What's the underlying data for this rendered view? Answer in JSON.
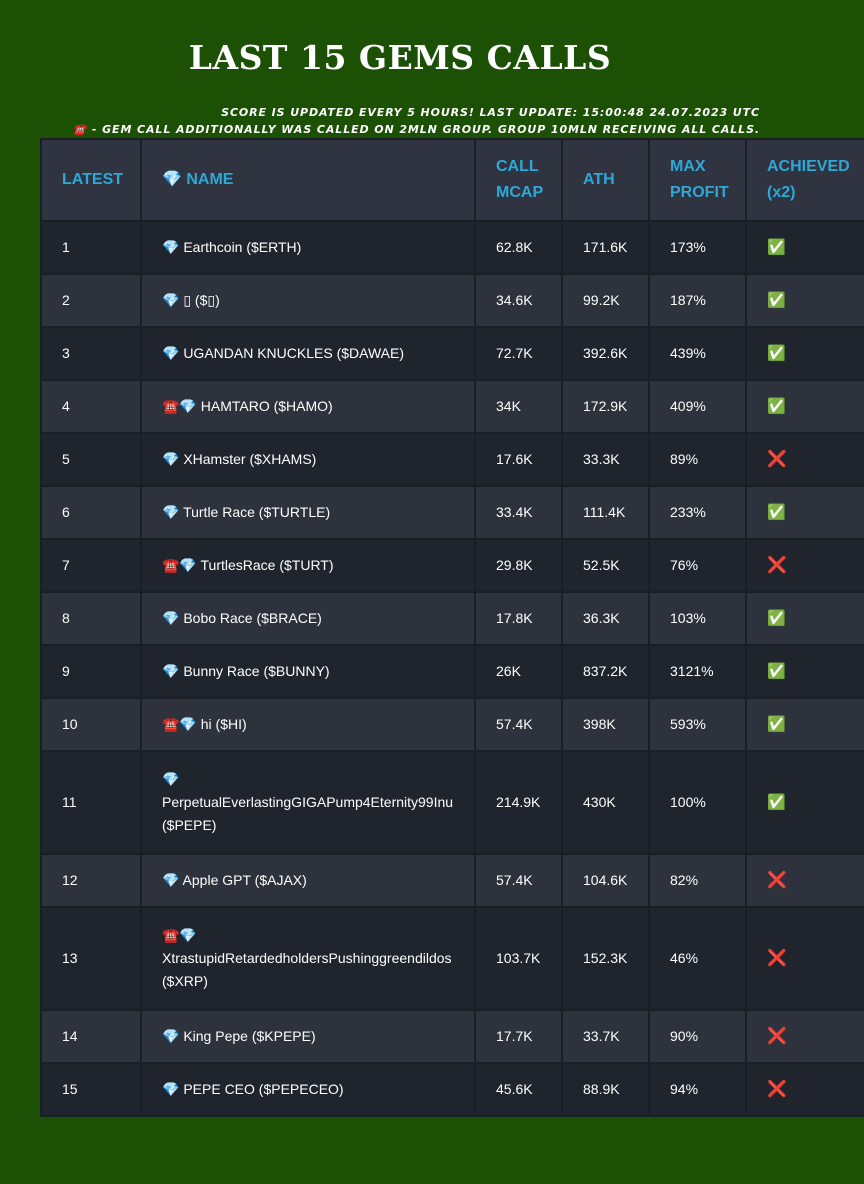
{
  "page": {
    "title": "LAST 15 GEMS CALLS",
    "update_note": "SCORE IS UPDATED EVERY 5 HOURS! LAST UPDATE: 15:00:48 24.07.2023 UTC",
    "group_note": "☎️ - GEM CALL ADDITIONALLY WAS CALLED ON 2MLN GROUP. GROUP 10MLN RECEIVING ALL CALLS."
  },
  "table": {
    "headers": {
      "latest": "LATEST",
      "name": "💎 NAME",
      "call_mcap_line1": "CALL",
      "call_mcap_line2": "MCAP",
      "ath": "ATH",
      "max_profit_line1": "MAX",
      "max_profit_line2": "PROFIT",
      "achieved_line1": "ACHIEVED",
      "achieved_line2": "(x2)"
    },
    "rows": [
      {
        "latest": "1",
        "name": "💎 Earthcoin ($ERTH)",
        "call_mcap": "62.8K",
        "ath": "171.6K",
        "max_profit": "173%",
        "achieved": "✅"
      },
      {
        "latest": "2",
        "name": "💎 ▯ ($▯)",
        "call_mcap": "34.6K",
        "ath": "99.2K",
        "max_profit": "187%",
        "achieved": "✅"
      },
      {
        "latest": "3",
        "name": "💎 UGANDAN KNUCKLES ($DAWAE)",
        "call_mcap": "72.7K",
        "ath": "392.6K",
        "max_profit": "439%",
        "achieved": "✅"
      },
      {
        "latest": "4",
        "name": "☎️💎 HAMTARO ($HAMO)",
        "call_mcap": "34K",
        "ath": "172.9K",
        "max_profit": "409%",
        "achieved": "✅"
      },
      {
        "latest": "5",
        "name": "💎 XHamster ($XHAMS)",
        "call_mcap": "17.6K",
        "ath": "33.3K",
        "max_profit": "89%",
        "achieved": "❌"
      },
      {
        "latest": "6",
        "name": "💎 Turtle Race ($TURTLE)",
        "call_mcap": "33.4K",
        "ath": "111.4K",
        "max_profit": "233%",
        "achieved": "✅"
      },
      {
        "latest": "7",
        "name": "☎️💎 TurtlesRace ($TURT)",
        "call_mcap": "29.8K",
        "ath": "52.5K",
        "max_profit": "76%",
        "achieved": "❌"
      },
      {
        "latest": "8",
        "name": "💎 Bobo Race ($BRACE)",
        "call_mcap": "17.8K",
        "ath": "36.3K",
        "max_profit": "103%",
        "achieved": "✅"
      },
      {
        "latest": "9",
        "name": "💎 Bunny Race ($BUNNY)",
        "call_mcap": "26K",
        "ath": "837.2K",
        "max_profit": "3121%",
        "achieved": "✅"
      },
      {
        "latest": "10",
        "name": "☎️💎 hi ($HI)",
        "call_mcap": "57.4K",
        "ath": "398K",
        "max_profit": "593%",
        "achieved": "✅"
      },
      {
        "latest": "11",
        "name_line1": "💎",
        "name_line2": "PerpetualEverlastingGIGAPump4Eternity99Inu",
        "name_line3": "($PEPE)",
        "call_mcap": "214.9K",
        "ath": "430K",
        "max_profit": "100%",
        "achieved": "✅"
      },
      {
        "latest": "12",
        "name": "💎 Apple GPT ($AJAX)",
        "call_mcap": "57.4K",
        "ath": "104.6K",
        "max_profit": "82%",
        "achieved": "❌"
      },
      {
        "latest": "13",
        "name_line1": "☎️💎",
        "name_line2": "XtrastupidRetardedholdersPushinggreendildos",
        "name_line3": "($XRP)",
        "call_mcap": "103.7K",
        "ath": "152.3K",
        "max_profit": "46%",
        "achieved": "❌"
      },
      {
        "latest": "14",
        "name": "💎 King Pepe ($KPEPE)",
        "call_mcap": "17.7K",
        "ath": "33.7K",
        "max_profit": "90%",
        "achieved": "❌"
      },
      {
        "latest": "15",
        "name": "💎 PEPE CEO ($PEPECEO)",
        "call_mcap": "45.6K",
        "ath": "88.9K",
        "max_profit": "94%",
        "achieved": "❌"
      }
    ]
  },
  "colors": {
    "background": "#1b5005",
    "header_text": "#2fa8d8",
    "row_dark": "#1f242d",
    "row_light": "#2d323d",
    "check_green": "#2ec45a",
    "cross_red": "#e23a3a"
  }
}
